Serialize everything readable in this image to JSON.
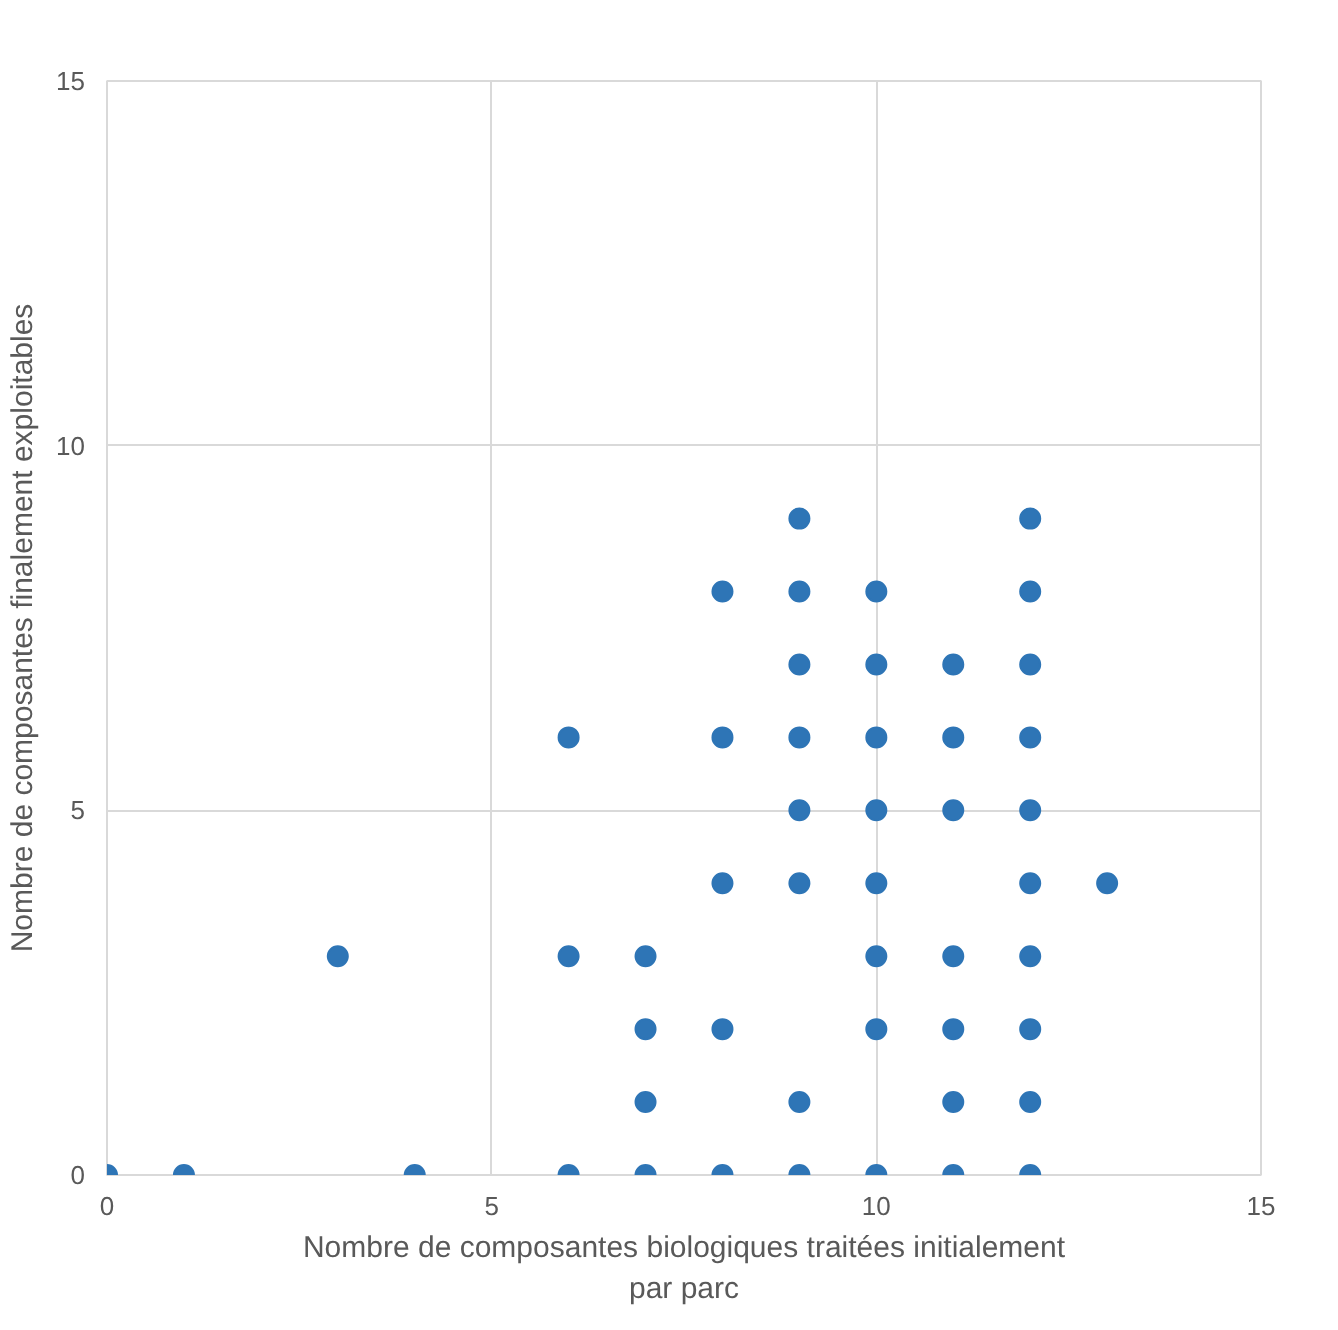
{
  "chart_data": {
    "type": "scatter",
    "xlabel": "Nombre de composantes biologiques traitées initialement par parc",
    "ylabel": "Nombre de composantes finalement exploitables",
    "x": [
      0,
      1,
      3,
      4,
      6,
      6,
      6,
      7,
      7,
      7,
      7,
      8,
      8,
      8,
      8,
      8,
      9,
      9,
      9,
      9,
      9,
      9,
      9,
      9,
      10,
      10,
      10,
      10,
      10,
      10,
      10,
      10,
      11,
      11,
      11,
      11,
      11,
      11,
      11,
      12,
      12,
      12,
      12,
      12,
      12,
      12,
      12,
      12,
      12,
      13
    ],
    "values": [
      0,
      0,
      3,
      0,
      6,
      3,
      0,
      3,
      2,
      1,
      0,
      8,
      6,
      4,
      2,
      0,
      9,
      8,
      7,
      6,
      5,
      4,
      1,
      0,
      8,
      7,
      6,
      5,
      4,
      3,
      2,
      0,
      7,
      6,
      5,
      3,
      2,
      1,
      0,
      9,
      8,
      7,
      6,
      5,
      4,
      3,
      2,
      1,
      0,
      4
    ],
    "color": "#2e75b6",
    "marker": "circle",
    "xlim": [
      0,
      15
    ],
    "ylim": [
      0,
      15
    ],
    "xticks": [
      0,
      5,
      10,
      15
    ],
    "yticks": [
      0,
      5,
      10,
      15
    ],
    "grid": true
  }
}
